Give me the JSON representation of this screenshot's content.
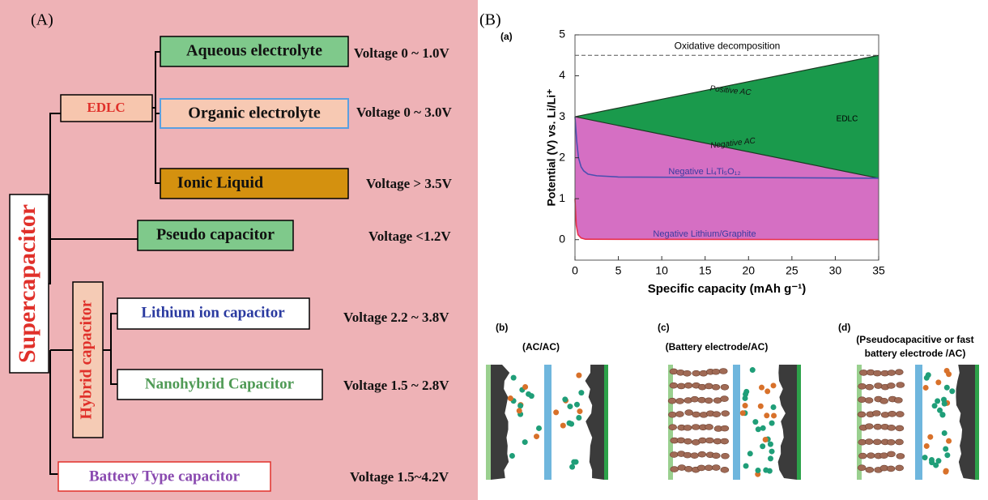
{
  "panel_a": {
    "label": "(A)",
    "root": "Supercapacitor",
    "branches": [
      {
        "label": "EDLC",
        "children": [
          {
            "label": "Aqueous electrolyte",
            "voltage": "Voltage 0 ~ 1.0V"
          },
          {
            "label": "Organic electrolyte",
            "voltage": "Voltage 0 ~ 3.0V"
          },
          {
            "label": "Ionic Liquid",
            "voltage": "Voltage > 3.5V"
          }
        ]
      },
      {
        "label": "Pseudo capacitor",
        "voltage": "Voltage <1.2V"
      },
      {
        "label": "Hybrid capacitor",
        "children": [
          {
            "label": "Lithium ion capacitor",
            "voltage": "Voltage 2.2 ~ 3.8V"
          },
          {
            "label": "Nanohybrid Capacitor",
            "voltage": "Voltage 1.5 ~ 2.8V"
          }
        ]
      },
      {
        "label": "Battery Type capacitor",
        "voltage": "Voltage 1.5~4.2V"
      }
    ]
  },
  "chart_data": {
    "type": "line",
    "panel_label": "(B)",
    "plot_label": "(a)",
    "xlabel": "Specific capacity (mAh g⁻¹)",
    "ylabel": "Potential (V) vs. Li/Li⁺",
    "xlim": [
      0,
      35
    ],
    "ylim": [
      -0.5,
      5
    ],
    "xticks": [
      0,
      5,
      10,
      15,
      20,
      25,
      30,
      35
    ],
    "yticks": [
      0,
      1,
      2,
      3,
      4,
      5
    ],
    "reference_line": {
      "y": 4.5,
      "label": "Oxidative decomposition"
    },
    "annotations": [
      "EDLC"
    ],
    "fills": [
      "#1a9a4c",
      "#d56fc3"
    ],
    "series": [
      {
        "name": "Positive AC",
        "color": "#1a3a22",
        "x": [
          0,
          35
        ],
        "values": [
          3,
          4.5
        ]
      },
      {
        "name": "Negative AC",
        "color": "#1a3a22",
        "x": [
          0,
          35
        ],
        "values": [
          3,
          1.5
        ]
      },
      {
        "name": "Negative Li₄Ti₅O₁₂",
        "color": "#4b4fb0",
        "x": [
          0,
          0.2,
          0.4,
          0.7,
          1,
          1.5,
          2.5,
          5,
          35
        ],
        "values": [
          3,
          2.4,
          2.0,
          1.78,
          1.68,
          1.6,
          1.56,
          1.53,
          1.5
        ]
      },
      {
        "name": "Negative Lithium/Graphite",
        "color": "#e8304a",
        "x": [
          0,
          0.15,
          0.35,
          0.7,
          1.2,
          35
        ],
        "values": [
          1.0,
          0.35,
          0.12,
          0.04,
          0.01,
          0
        ]
      }
    ]
  },
  "schematics": [
    {
      "label": "(b)",
      "title": [
        "(AC/AC)"
      ]
    },
    {
      "label": "(c)",
      "title": [
        "(Battery electrode/AC)"
      ]
    },
    {
      "label": "(d)",
      "title": [
        "(Pseudocapacitive or fast",
        "battery electrode /AC)"
      ]
    }
  ]
}
